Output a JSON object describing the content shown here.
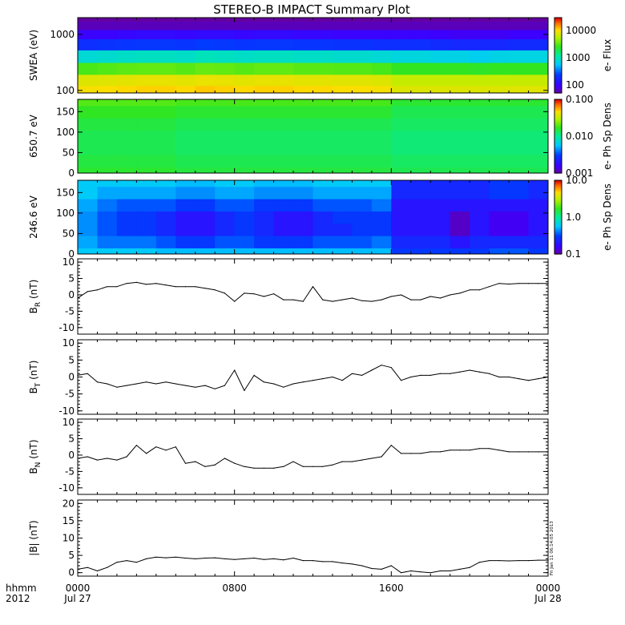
{
  "title": "STEREO-B IMPACT Summary Plot",
  "colors": {
    "line": "#000000",
    "background": "#ffffff"
  },
  "time_axis": {
    "row1_label": "hhmm",
    "row2_label": "2012",
    "ticks": [
      {
        "hour": 0,
        "label": "0000",
        "date": "Jul 27"
      },
      {
        "hour": 8,
        "label": "0800",
        "date": ""
      },
      {
        "hour": 16,
        "label": "1600",
        "date": ""
      },
      {
        "hour": 24,
        "label": "0000",
        "date": "Jul 28"
      }
    ],
    "range_hours": [
      0,
      24
    ]
  },
  "stamp": "Fri Jan 11 06:14:05 2013",
  "chart_data": [
    {
      "type": "heatmap",
      "ylabel": "SWEA (eV)",
      "yscale": "log",
      "ylim": [
        90,
        2000
      ],
      "yticks": [
        "1000",
        "100"
      ],
      "colorbar": {
        "label": "e- Flux",
        "scale": "log",
        "ticks": [
          "10000",
          "1000",
          "100"
        ],
        "range": [
          50,
          30000
        ]
      },
      "x_hours": [
        0,
        1,
        2,
        3,
        4,
        5,
        6,
        7,
        8,
        9,
        10,
        11,
        12,
        13,
        14,
        15,
        16,
        17,
        18,
        19,
        20,
        21,
        22,
        23,
        24
      ],
      "energy_eV": [
        100,
        150,
        250,
        400,
        700,
        1000,
        1500,
        2000
      ],
      "flux": [
        [
          10000,
          8000,
          3000,
          800,
          200,
          100,
          60,
          50
        ],
        [
          10500,
          8200,
          3200,
          850,
          210,
          100,
          60,
          50
        ],
        [
          11000,
          8500,
          3400,
          900,
          220,
          105,
          60,
          50
        ],
        [
          11500,
          8800,
          3500,
          950,
          230,
          110,
          60,
          50
        ],
        [
          11500,
          8800,
          3500,
          950,
          230,
          110,
          60,
          50
        ],
        [
          11000,
          8500,
          3300,
          900,
          220,
          105,
          60,
          50
        ],
        [
          12000,
          9000,
          3600,
          1000,
          240,
          110,
          60,
          50
        ],
        [
          11500,
          8800,
          3500,
          950,
          230,
          110,
          60,
          50
        ],
        [
          11000,
          8500,
          3300,
          900,
          220,
          105,
          60,
          50
        ],
        [
          11500,
          8800,
          3500,
          950,
          230,
          110,
          60,
          50
        ],
        [
          11500,
          8800,
          3500,
          950,
          230,
          110,
          60,
          50
        ],
        [
          11000,
          8500,
          3300,
          900,
          220,
          105,
          60,
          50
        ],
        [
          11000,
          8500,
          3300,
          900,
          220,
          105,
          60,
          50
        ],
        [
          10500,
          8200,
          3200,
          850,
          210,
          100,
          60,
          50
        ],
        [
          10500,
          8200,
          3200,
          850,
          210,
          100,
          60,
          50
        ],
        [
          10000,
          8000,
          3000,
          800,
          200,
          100,
          60,
          50
        ],
        [
          8000,
          6500,
          2600,
          750,
          200,
          100,
          60,
          50
        ],
        [
          8000,
          6500,
          2600,
          750,
          200,
          100,
          60,
          50
        ],
        [
          8000,
          6500,
          2600,
          700,
          190,
          95,
          60,
          50
        ],
        [
          8000,
          6500,
          2600,
          700,
          180,
          90,
          60,
          50
        ],
        [
          8000,
          6500,
          2500,
          650,
          180,
          90,
          60,
          50
        ],
        [
          8000,
          6500,
          2600,
          700,
          180,
          90,
          60,
          50
        ],
        [
          8200,
          6600,
          2600,
          720,
          190,
          95,
          60,
          50
        ],
        [
          8200,
          6600,
          2600,
          720,
          190,
          95,
          60,
          50
        ]
      ]
    },
    {
      "type": "heatmap",
      "ylabel": "650.7 eV",
      "ylim": [
        0,
        180
      ],
      "yticks": [
        "150",
        "100",
        "50",
        "0"
      ],
      "colorbar": {
        "label": "e- Ph Sp Dens",
        "scale": "log",
        "ticks": [
          "0.100",
          "0.010",
          "0.001"
        ],
        "range": [
          0.001,
          0.1
        ]
      },
      "x_hours": [
        0,
        1,
        2,
        3,
        4,
        5,
        6,
        7,
        8,
        9,
        10,
        11,
        12,
        13,
        14,
        15,
        16,
        17,
        18,
        19,
        20,
        21,
        22,
        23,
        24
      ],
      "pitch_angle_deg": [
        0,
        30,
        60,
        90,
        120,
        150,
        180
      ],
      "density": [
        [
          0.016,
          0.015,
          0.014,
          0.014,
          0.015,
          0.017,
          0.02
        ],
        [
          0.016,
          0.015,
          0.014,
          0.014,
          0.015,
          0.017,
          0.02
        ],
        [
          0.016,
          0.015,
          0.014,
          0.014,
          0.015,
          0.017,
          0.02
        ],
        [
          0.016,
          0.015,
          0.014,
          0.014,
          0.015,
          0.017,
          0.02
        ],
        [
          0.016,
          0.015,
          0.014,
          0.014,
          0.015,
          0.017,
          0.02
        ],
        [
          0.015,
          0.014,
          0.013,
          0.013,
          0.014,
          0.016,
          0.019
        ],
        [
          0.015,
          0.014,
          0.013,
          0.013,
          0.014,
          0.016,
          0.019
        ],
        [
          0.015,
          0.014,
          0.013,
          0.013,
          0.014,
          0.016,
          0.019
        ],
        [
          0.015,
          0.014,
          0.013,
          0.013,
          0.014,
          0.016,
          0.019
        ],
        [
          0.015,
          0.014,
          0.013,
          0.013,
          0.014,
          0.016,
          0.019
        ],
        [
          0.015,
          0.014,
          0.013,
          0.013,
          0.014,
          0.016,
          0.019
        ],
        [
          0.015,
          0.014,
          0.013,
          0.013,
          0.014,
          0.016,
          0.019
        ],
        [
          0.015,
          0.014,
          0.013,
          0.013,
          0.014,
          0.016,
          0.019
        ],
        [
          0.015,
          0.014,
          0.013,
          0.013,
          0.014,
          0.016,
          0.019
        ],
        [
          0.015,
          0.014,
          0.013,
          0.013,
          0.014,
          0.016,
          0.019
        ],
        [
          0.015,
          0.014,
          0.013,
          0.013,
          0.014,
          0.016,
          0.019
        ],
        [
          0.014,
          0.013,
          0.012,
          0.012,
          0.013,
          0.014,
          0.016
        ],
        [
          0.014,
          0.013,
          0.012,
          0.012,
          0.013,
          0.014,
          0.016
        ],
        [
          0.014,
          0.013,
          0.012,
          0.012,
          0.013,
          0.014,
          0.016
        ],
        [
          0.014,
          0.013,
          0.012,
          0.012,
          0.013,
          0.014,
          0.016
        ],
        [
          0.014,
          0.013,
          0.012,
          0.012,
          0.013,
          0.014,
          0.016
        ],
        [
          0.014,
          0.013,
          0.012,
          0.012,
          0.013,
          0.014,
          0.016
        ],
        [
          0.014,
          0.013,
          0.012,
          0.012,
          0.013,
          0.014,
          0.016
        ],
        [
          0.014,
          0.013,
          0.012,
          0.012,
          0.013,
          0.014,
          0.016
        ]
      ]
    },
    {
      "type": "heatmap",
      "ylabel": "246.6 eV",
      "ylim": [
        0,
        180
      ],
      "yticks": [
        "150",
        "100",
        "50",
        "0"
      ],
      "colorbar": {
        "label": "e- Ph Sp Dens",
        "scale": "log",
        "ticks": [
          "10.0",
          "1.0",
          "0.1"
        ],
        "range": [
          0.1,
          10
        ]
      },
      "x_hours": [
        0,
        1,
        2,
        3,
        4,
        5,
        6,
        7,
        8,
        9,
        10,
        11,
        12,
        13,
        14,
        15,
        16,
        17,
        18,
        19,
        20,
        21,
        22,
        23,
        24
      ],
      "pitch_angle_deg": [
        0,
        30,
        60,
        90,
        120,
        150,
        180
      ],
      "density": [
        [
          0.6,
          0.5,
          0.45,
          0.45,
          0.5,
          0.6,
          0.6
        ],
        [
          0.6,
          0.4,
          0.35,
          0.35,
          0.4,
          0.5,
          0.6
        ],
        [
          0.6,
          0.4,
          0.3,
          0.3,
          0.35,
          0.5,
          0.6
        ],
        [
          0.6,
          0.4,
          0.3,
          0.3,
          0.35,
          0.5,
          0.6
        ],
        [
          0.55,
          0.35,
          0.25,
          0.25,
          0.35,
          0.5,
          0.6
        ],
        [
          0.55,
          0.3,
          0.2,
          0.2,
          0.3,
          0.45,
          0.55
        ],
        [
          0.55,
          0.3,
          0.2,
          0.2,
          0.3,
          0.45,
          0.55
        ],
        [
          0.55,
          0.35,
          0.25,
          0.25,
          0.35,
          0.5,
          0.6
        ],
        [
          0.55,
          0.35,
          0.3,
          0.3,
          0.35,
          0.5,
          0.6
        ],
        [
          0.55,
          0.3,
          0.25,
          0.25,
          0.3,
          0.45,
          0.55
        ],
        [
          0.55,
          0.3,
          0.2,
          0.2,
          0.3,
          0.45,
          0.55
        ],
        [
          0.55,
          0.3,
          0.2,
          0.2,
          0.3,
          0.45,
          0.55
        ],
        [
          0.55,
          0.35,
          0.25,
          0.25,
          0.35,
          0.5,
          0.6
        ],
        [
          0.55,
          0.35,
          0.25,
          0.3,
          0.35,
          0.5,
          0.6
        ],
        [
          0.55,
          0.35,
          0.3,
          0.3,
          0.35,
          0.5,
          0.6
        ],
        [
          0.55,
          0.4,
          0.3,
          0.3,
          0.4,
          0.5,
          0.6
        ],
        [
          0.3,
          0.25,
          0.2,
          0.2,
          0.2,
          0.25,
          0.25
        ],
        [
          0.3,
          0.25,
          0.2,
          0.2,
          0.2,
          0.25,
          0.25
        ],
        [
          0.3,
          0.25,
          0.2,
          0.2,
          0.2,
          0.25,
          0.25
        ],
        [
          0.3,
          0.2,
          0.12,
          0.12,
          0.2,
          0.25,
          0.25
        ],
        [
          0.3,
          0.25,
          0.2,
          0.2,
          0.2,
          0.25,
          0.25
        ],
        [
          0.35,
          0.25,
          0.15,
          0.15,
          0.2,
          0.3,
          0.3
        ],
        [
          0.35,
          0.25,
          0.15,
          0.15,
          0.2,
          0.3,
          0.3
        ],
        [
          0.3,
          0.25,
          0.2,
          0.2,
          0.2,
          0.25,
          0.25
        ]
      ]
    },
    {
      "type": "line",
      "ylabel_main": "B",
      "ylabel_sub": "R",
      "ylabel_unit": " (nT)",
      "ylim": [
        -12,
        11
      ],
      "yticks": [
        10,
        5,
        0,
        -5,
        -10
      ],
      "x_hours": [
        0,
        0.5,
        1,
        1.5,
        2,
        2.5,
        3,
        3.5,
        4,
        4.5,
        5,
        5.5,
        6,
        6.5,
        7,
        7.5,
        8,
        8.5,
        9,
        9.5,
        10,
        10.5,
        11,
        11.5,
        12,
        12.5,
        13,
        13.5,
        14,
        14.5,
        15,
        15.5,
        16,
        16.5,
        17,
        17.5,
        18,
        18.5,
        19,
        19.5,
        20,
        20.5,
        21,
        21.5,
        22,
        22.5,
        23,
        23.5,
        24
      ],
      "values": [
        -1,
        1,
        1.5,
        2.5,
        2.5,
        3.5,
        3.8,
        3.2,
        3.5,
        3,
        2.5,
        2.5,
        2.5,
        2,
        1.5,
        0.5,
        -2,
        0.5,
        0.3,
        -0.5,
        0.3,
        -1.5,
        -1.5,
        -2,
        2.5,
        -1.5,
        -2,
        -1.5,
        -1,
        -1.8,
        -2,
        -1.5,
        -0.5,
        0,
        -1.5,
        -1.5,
        -0.5,
        -1,
        0,
        0.5,
        1.5,
        1.5,
        2.5,
        3.5,
        3.3,
        3.5,
        3.5,
        3.5,
        3.5
      ]
    },
    {
      "type": "line",
      "ylabel_main": "B",
      "ylabel_sub": "T",
      "ylabel_unit": " (nT)",
      "ylim": [
        -11,
        11
      ],
      "yticks": [
        10,
        5,
        0,
        -5,
        -10
      ],
      "x_hours": [
        0,
        0.5,
        1,
        1.5,
        2,
        2.5,
        3,
        3.5,
        4,
        4.5,
        5,
        5.5,
        6,
        6.5,
        7,
        7.5,
        8,
        8.5,
        9,
        9.5,
        10,
        10.5,
        11,
        11.5,
        12,
        12.5,
        13,
        13.5,
        14,
        14.5,
        15,
        15.5,
        16,
        16.5,
        17,
        17.5,
        18,
        18.5,
        19,
        19.5,
        20,
        20.5,
        21,
        21.5,
        22,
        22.5,
        23,
        23.5,
        24
      ],
      "values": [
        0.5,
        1,
        -1.5,
        -2,
        -3,
        -2.5,
        -2,
        -1.5,
        -2,
        -1.5,
        -2,
        -2.5,
        -3,
        -2.5,
        -3.5,
        -2.5,
        2,
        -4,
        0.5,
        -1.5,
        -2,
        -3,
        -2,
        -1.5,
        -1,
        -0.5,
        0,
        -1,
        1,
        0.5,
        2,
        3.5,
        2.8,
        -1,
        0,
        0.5,
        0.5,
        1,
        1,
        1.5,
        2,
        1.5,
        1,
        0,
        0,
        -0.5,
        -1,
        -0.5,
        0
      ]
    },
    {
      "type": "line",
      "ylabel_main": "B",
      "ylabel_sub": "N",
      "ylabel_unit": " (nT)",
      "ylim": [
        -12,
        11
      ],
      "yticks": [
        10,
        5,
        0,
        -5,
        -10
      ],
      "x_hours": [
        0,
        0.5,
        1,
        1.5,
        2,
        2.5,
        3,
        3.5,
        4,
        4.5,
        5,
        5.5,
        6,
        6.5,
        7,
        7.5,
        8,
        8.5,
        9,
        9.5,
        10,
        10.5,
        11,
        11.5,
        12,
        12.5,
        13,
        13.5,
        14,
        14.5,
        15,
        15.5,
        16,
        16.5,
        17,
        17.5,
        18,
        18.5,
        19,
        19.5,
        20,
        20.5,
        21,
        21.5,
        22,
        22.5,
        23,
        23.5,
        24
      ],
      "values": [
        -1,
        -0.5,
        -1.5,
        -1,
        -1.5,
        -0.5,
        3,
        0.5,
        2.5,
        1.5,
        2.5,
        -2.5,
        -2,
        -3.5,
        -3,
        -1,
        -2.5,
        -3.5,
        -4,
        -4,
        -4,
        -3.5,
        -2,
        -3.5,
        -3.5,
        -3.5,
        -3,
        -2,
        -2,
        -1.5,
        -1,
        -0.5,
        3,
        0.5,
        0.5,
        0.5,
        1,
        1,
        1.5,
        1.5,
        1.5,
        2,
        2,
        1.5,
        1,
        1,
        1,
        1,
        1
      ]
    },
    {
      "type": "line",
      "ylabel": "|B| (nT)",
      "ylim": [
        -1,
        21
      ],
      "yticks": [
        20,
        15,
        10,
        5,
        0
      ],
      "x_hours": [
        0,
        0.5,
        1,
        1.5,
        2,
        2.5,
        3,
        3.5,
        4,
        4.5,
        5,
        5.5,
        6,
        6.5,
        7,
        7.5,
        8,
        8.5,
        9,
        9.5,
        10,
        10.5,
        11,
        11.5,
        12,
        12.5,
        13,
        13.5,
        14,
        14.5,
        15,
        15.5,
        16,
        16.5,
        17,
        17.5,
        18,
        18.5,
        19,
        19.5,
        20,
        20.5,
        21,
        21.5,
        22,
        22.5,
        23,
        23.5,
        24
      ],
      "values": [
        1,
        1.5,
        0.5,
        1.5,
        3,
        3.5,
        3,
        4,
        4.5,
        4.3,
        4.5,
        4.2,
        4,
        4.2,
        4.3,
        4,
        3.8,
        4,
        4.2,
        3.8,
        4,
        3.7,
        4.2,
        3.5,
        3.5,
        3.2,
        3.2,
        2.8,
        2.5,
        2,
        1.2,
        1,
        2,
        0,
        0.5,
        0.2,
        0,
        0.5,
        0.5,
        1,
        1.5,
        3,
        3.5,
        3.5,
        3.4,
        3.5,
        3.5,
        3.6,
        3.6
      ]
    }
  ]
}
